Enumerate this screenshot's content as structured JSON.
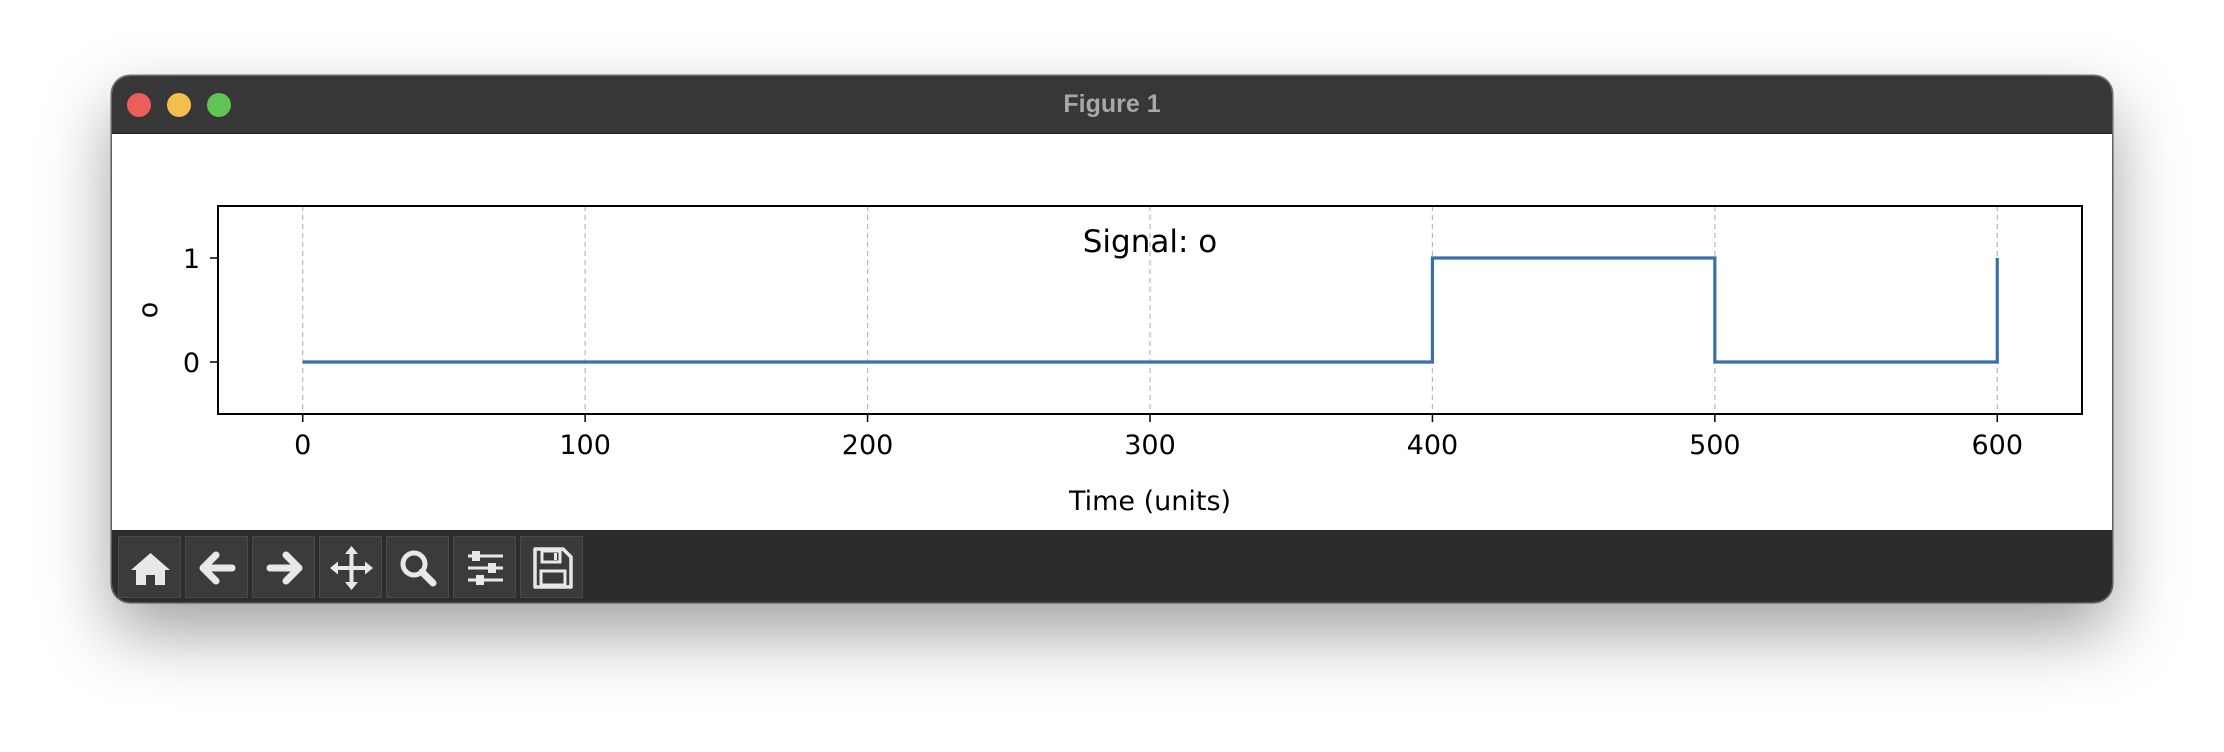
{
  "window": {
    "title": "Figure 1"
  },
  "toolbar": {
    "buttons": [
      {
        "icon": "home-icon",
        "name": "home-button"
      },
      {
        "icon": "arrow-left-icon",
        "name": "back-button"
      },
      {
        "icon": "arrow-right-icon",
        "name": "forward-button"
      },
      {
        "icon": "move-icon",
        "name": "pan-button"
      },
      {
        "icon": "magnifier-icon",
        "name": "zoom-button"
      },
      {
        "icon": "sliders-icon",
        "name": "configure-subplots-button"
      },
      {
        "icon": "floppy-disk-icon",
        "name": "save-button"
      }
    ]
  },
  "chart_data": {
    "type": "line",
    "title": "Signal: o",
    "xlabel": "Time (units)",
    "ylabel": "o",
    "xlim": [
      -30,
      630
    ],
    "ylim": [
      -0.5,
      1.5
    ],
    "xticks": [
      0,
      100,
      200,
      300,
      400,
      500,
      600
    ],
    "yticks": [
      0,
      1
    ],
    "grid": "vertical dashed",
    "series": [
      {
        "color": "#3a70aa",
        "step": "post",
        "x": [
          0,
          100,
          200,
          300,
          400,
          500,
          600
        ],
        "y": [
          0,
          0,
          0,
          0,
          1,
          0,
          1
        ]
      }
    ]
  }
}
